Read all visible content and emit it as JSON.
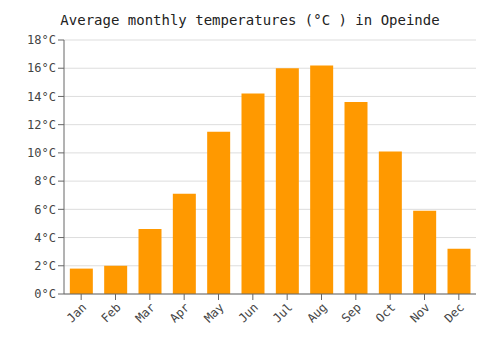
{
  "chart_data": {
    "type": "bar",
    "title": "Average monthly temperatures (°C ) in Opeinde",
    "categories": [
      "Jan",
      "Feb",
      "Mar",
      "Apr",
      "May",
      "Jun",
      "Jul",
      "Aug",
      "Sep",
      "Oct",
      "Nov",
      "Dec"
    ],
    "values": [
      1.8,
      2.0,
      4.6,
      7.1,
      11.5,
      14.2,
      16.0,
      16.2,
      13.6,
      10.1,
      5.9,
      3.2
    ],
    "color": "#FF9900",
    "ylim": [
      0,
      18
    ],
    "yticks": [
      {
        "value": 0,
        "label": "0°C"
      },
      {
        "value": 2,
        "label": "2°C"
      },
      {
        "value": 4,
        "label": "4°C"
      },
      {
        "value": 6,
        "label": "6°C"
      },
      {
        "value": 8,
        "label": "8°C"
      },
      {
        "value": 10,
        "label": "10°C"
      },
      {
        "value": 12,
        "label": "12°C"
      },
      {
        "value": 14,
        "label": "14°C"
      },
      {
        "value": 16,
        "label": "16°C"
      },
      {
        "value": 18,
        "label": "18°C"
      }
    ],
    "grid": true
  }
}
